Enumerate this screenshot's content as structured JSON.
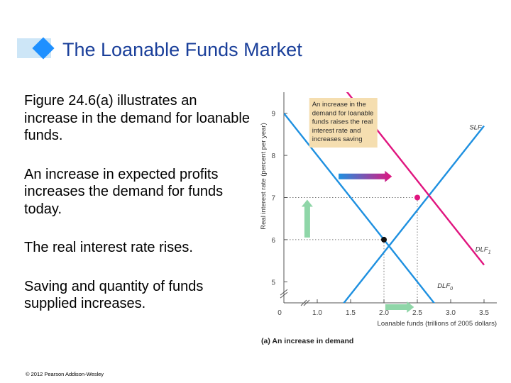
{
  "slide": {
    "title": "The Loanable Funds Market",
    "bullets": [
      "Figure 24.6(a) illustrates an increase in the demand for loanable funds.",
      "An increase in expected profits increases the demand for funds today.",
      "The real interest rate rises.",
      "Saving and quantity of funds supplied increases."
    ],
    "copyright": "© 2012 Pearson Addison-Wesley"
  },
  "colors": {
    "title": "#1a3f9a",
    "supply": "#1e90e0",
    "demand_new": "#e0157f",
    "demand_old": "#1e90e0",
    "annotation_box": "#f5deb0",
    "arrow_green": "#8fd6a8"
  },
  "chart_data": {
    "type": "line",
    "xlabel": "Loanable funds (trillions of 2005 dollars)",
    "ylabel": "Real interest rate (percent per year)",
    "caption": "(a) An increase in demand",
    "xlim": [
      0.5,
      3.5
    ],
    "ylim": [
      4.5,
      9.5
    ],
    "x_ticks": [
      {
        "value": 1.0,
        "label": "1.0"
      },
      {
        "value": 1.5,
        "label": "1.5"
      },
      {
        "value": 2.0,
        "label": "2.0"
      },
      {
        "value": 2.5,
        "label": "2.5"
      },
      {
        "value": 3.0,
        "label": "3.0"
      },
      {
        "value": 3.5,
        "label": "3.5"
      }
    ],
    "x_origin_label": "0",
    "y_ticks": [
      {
        "value": 5,
        "label": "5"
      },
      {
        "value": 6,
        "label": "6"
      },
      {
        "value": 7,
        "label": "7"
      },
      {
        "value": 8,
        "label": "8"
      },
      {
        "value": 9,
        "label": "9"
      }
    ],
    "highlight_x": 2.5,
    "highlight_y": 7,
    "series": [
      {
        "key": "SLF",
        "name": "SLF",
        "points": [
          [
            3.5,
            8.7
          ],
          [
            0.5,
            2.7
          ]
        ]
      },
      {
        "key": "DLF1",
        "name": "DLF1",
        "name_main": "DLF",
        "name_sub": "1",
        "points": [
          [
            1.4,
            9.6
          ],
          [
            3.5,
            5.4
          ]
        ]
      },
      {
        "key": "DLF0",
        "name": "DLF0",
        "name_main": "DLF",
        "name_sub": "0",
        "points": [
          [
            0.5,
            9.0
          ],
          [
            3.0,
            4.0
          ]
        ]
      }
    ],
    "equilibria": [
      {
        "x": 2.0,
        "y": 6,
        "color": "#111111"
      },
      {
        "x": 2.5,
        "y": 7,
        "color": "#e0157f"
      }
    ],
    "annotation": "An increase in the demand for loanable funds raises the real interest rate and increases saving",
    "annotation_lines": [
      "An increase in the",
      "demand for loanable",
      "funds raises the real",
      "interest rate and",
      "increases saving"
    ]
  }
}
